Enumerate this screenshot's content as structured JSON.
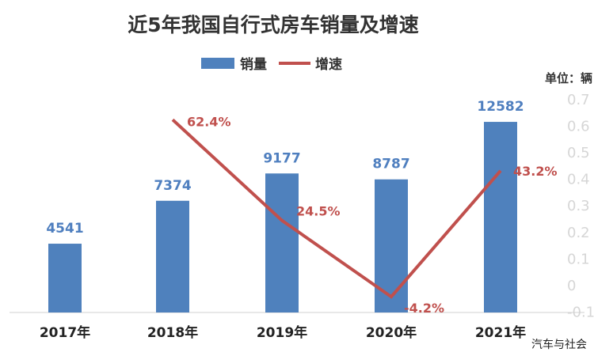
{
  "chart_data": {
    "type": "bar",
    "title": "近5年我国自行式房车销量及增速",
    "unit_label": "单位：辆",
    "categories": [
      "2017年",
      "2018年",
      "2019年",
      "2020年",
      "2021年"
    ],
    "series": [
      {
        "name": "销量",
        "type": "bar",
        "axis": "left",
        "color": "#4f81bd",
        "values": [
          4541,
          7374,
          9177,
          8787,
          12582
        ],
        "labels": [
          "4541",
          "7374",
          "9177",
          "8787",
          "12582"
        ]
      },
      {
        "name": "增速",
        "type": "line",
        "axis": "right",
        "color": "#c0504d",
        "values": [
          null,
          0.624,
          0.245,
          -0.042,
          0.432
        ],
        "labels": [
          "",
          "62.4%",
          "24.5%",
          "-4.2%",
          "43.2%"
        ]
      }
    ],
    "y_left_range": [
      0,
      14000
    ],
    "y_right_range": [
      -0.1,
      0.7
    ],
    "y_right_ticks": [
      "0.7",
      "0.6",
      "0.5",
      "0.4",
      "0.3",
      "0.2",
      "0.1",
      "0",
      "-0.1"
    ],
    "legend_position": "top-center",
    "grid": false
  },
  "watermark": "汽车与社会"
}
